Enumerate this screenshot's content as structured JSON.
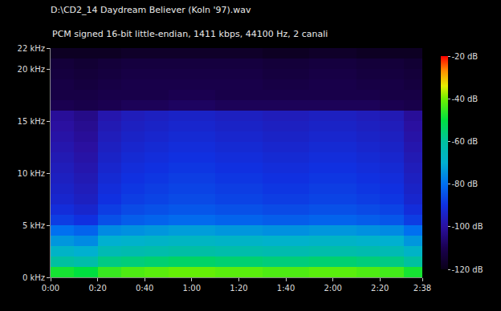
{
  "chart_data": {
    "type": "heatmap",
    "title": "D:\\CD2_14 Daydream Believer (Koln '97).wav",
    "subtitle": "PCM signed 16-bit little-endian, 1411 kbps, 44100 Hz, 2 canali",
    "x_bins": [
      0,
      10,
      20,
      30,
      40,
      50,
      60,
      70,
      80,
      90,
      100,
      110,
      120,
      130,
      140,
      150,
      158
    ],
    "y_bins": [
      0,
      1,
      2,
      3,
      4,
      5,
      6,
      7,
      8,
      9,
      10,
      11,
      12,
      13,
      14,
      15,
      16,
      17,
      18,
      19,
      20,
      21,
      22
    ],
    "cells": [
      [
        -48,
        -50,
        -45,
        -43,
        -42,
        -41,
        -41,
        -42,
        -42,
        -43,
        -43,
        -42,
        -42,
        -43,
        -44,
        -48
      ],
      [
        -60,
        -62,
        -57,
        -56,
        -55,
        -54,
        -54,
        -55,
        -55,
        -56,
        -56,
        -55,
        -55,
        -56,
        -57,
        -60
      ],
      [
        -68,
        -70,
        -64,
        -63,
        -62,
        -61,
        -61,
        -62,
        -62,
        -63,
        -63,
        -62,
        -62,
        -63,
        -64,
        -68
      ],
      [
        -74,
        -76,
        -70,
        -69,
        -68,
        -67,
        -67,
        -68,
        -68,
        -69,
        -69,
        -68,
        -68,
        -69,
        -70,
        -74
      ],
      [
        -80,
        -82,
        -76,
        -75,
        -74,
        -73,
        -73,
        -74,
        -74,
        -75,
        -75,
        -74,
        -74,
        -75,
        -76,
        -80
      ],
      [
        -88,
        -90,
        -85,
        -83,
        -82,
        -81,
        -81,
        -82,
        -82,
        -83,
        -83,
        -82,
        -82,
        -83,
        -84,
        -88
      ],
      [
        -91,
        -93,
        -88,
        -86,
        -85,
        -84,
        -84,
        -85,
        -85,
        -86,
        -86,
        -85,
        -85,
        -86,
        -87,
        -91
      ],
      [
        -93,
        -95,
        -90,
        -88,
        -87,
        -86,
        -86,
        -87,
        -87,
        -88,
        -88,
        -87,
        -87,
        -88,
        -89,
        -93
      ],
      [
        -94,
        -96,
        -91,
        -89,
        -88,
        -87,
        -87,
        -88,
        -88,
        -89,
        -89,
        -88,
        -88,
        -89,
        -90,
        -94
      ],
      [
        -95,
        -97,
        -92,
        -90,
        -89,
        -88,
        -88,
        -89,
        -89,
        -90,
        -90,
        -89,
        -89,
        -90,
        -91,
        -95
      ],
      [
        -96,
        -98,
        -93,
        -91,
        -90,
        -89,
        -89,
        -90,
        -90,
        -91,
        -91,
        -90,
        -90,
        -91,
        -92,
        -96
      ],
      [
        -97,
        -99,
        -94,
        -92,
        -91,
        -90,
        -90,
        -91,
        -91,
        -92,
        -92,
        -91,
        -91,
        -92,
        -93,
        -97
      ],
      [
        -98,
        -100,
        -95,
        -93,
        -92,
        -91,
        -91,
        -92,
        -92,
        -93,
        -93,
        -92,
        -92,
        -93,
        -94,
        -98
      ],
      [
        -99,
        -101,
        -96,
        -94,
        -93,
        -92,
        -92,
        -93,
        -93,
        -94,
        -94,
        -93,
        -93,
        -94,
        -95,
        -99
      ],
      [
        -100,
        -102,
        -97,
        -95,
        -94,
        -93,
        -93,
        -94,
        -94,
        -95,
        -95,
        -94,
        -94,
        -95,
        -96,
        -100
      ],
      [
        -101,
        -103,
        -98,
        -96,
        -95,
        -94,
        -94,
        -95,
        -95,
        -96,
        -96,
        -95,
        -95,
        -96,
        -97,
        -101
      ],
      [
        -110,
        -111,
        -110,
        -109,
        -109,
        -108,
        -108,
        -109,
        -109,
        -109,
        -109,
        -109,
        -109,
        -109,
        -110,
        -111
      ],
      [
        -112,
        -112,
        -111,
        -111,
        -111,
        -110,
        -110,
        -111,
        -111,
        -111,
        -111,
        -111,
        -111,
        -111,
        -112,
        -112
      ],
      [
        -112,
        -113,
        -112,
        -111,
        -111,
        -111,
        -111,
        -111,
        -111,
        -112,
        -112,
        -111,
        -111,
        -112,
        -112,
        -113
      ],
      [
        -113,
        -114,
        -113,
        -112,
        -112,
        -112,
        -112,
        -112,
        -112,
        -113,
        -113,
        -112,
        -112,
        -113,
        -113,
        -114
      ],
      [
        -114,
        -115,
        -114,
        -113,
        -113,
        -113,
        -113,
        -113,
        -113,
        -114,
        -114,
        -113,
        -113,
        -114,
        -114,
        -115
      ],
      [
        -118,
        -118,
        -118,
        -117,
        -117,
        -117,
        -117,
        -117,
        -117,
        -118,
        -118,
        -117,
        -117,
        -118,
        -118,
        -118
      ]
    ],
    "xlim": [
      0,
      158
    ],
    "xticks": [
      {
        "value": 0,
        "label": "0:00"
      },
      {
        "value": 20,
        "label": "0:20"
      },
      {
        "value": 40,
        "label": "0:40"
      },
      {
        "value": 60,
        "label": "1:00"
      },
      {
        "value": 80,
        "label": "1:20"
      },
      {
        "value": 100,
        "label": "1:40"
      },
      {
        "value": 120,
        "label": "2:00"
      },
      {
        "value": 140,
        "label": "2:20"
      },
      {
        "value": 158,
        "label": "2:38"
      }
    ],
    "ylim": [
      0,
      22
    ],
    "yticks": [
      {
        "value": 0,
        "label": "0 kHz"
      },
      {
        "value": 5,
        "label": "5 kHz"
      },
      {
        "value": 10,
        "label": "10 kHz"
      },
      {
        "value": 15,
        "label": "15 kHz"
      },
      {
        "value": 20,
        "label": "20 kHz"
      },
      {
        "value": 22,
        "label": "22 kHz"
      }
    ],
    "zlim": [
      -120,
      -20
    ],
    "zticks": [
      {
        "value": -20,
        "label": "-20 dB"
      },
      {
        "value": -40,
        "label": "-40 dB"
      },
      {
        "value": -60,
        "label": "-60 dB"
      },
      {
        "value": -80,
        "label": "-80 dB"
      },
      {
        "value": -100,
        "label": "-100 dB"
      },
      {
        "value": -120,
        "label": "-120 dB"
      }
    ],
    "grid": false
  }
}
